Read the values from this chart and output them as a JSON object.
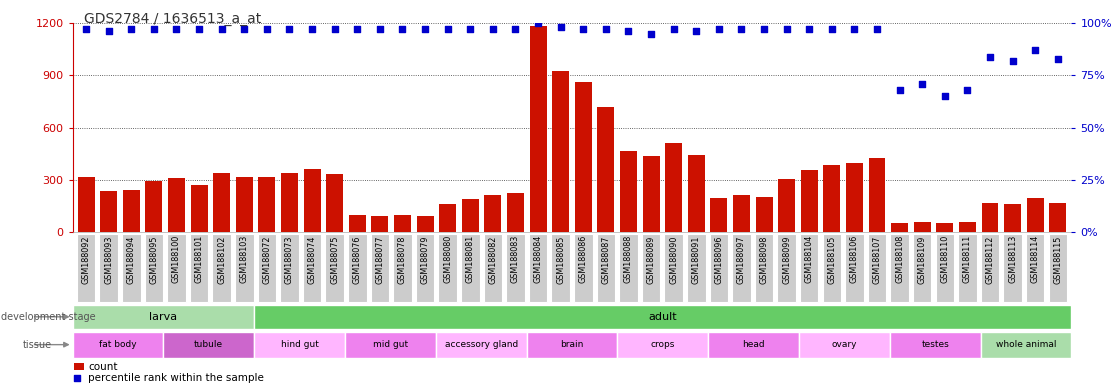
{
  "title": "GDS2784 / 1636513_a_at",
  "samples": [
    "GSM188092",
    "GSM188093",
    "GSM188094",
    "GSM188095",
    "GSM188100",
    "GSM188101",
    "GSM188102",
    "GSM188103",
    "GSM188072",
    "GSM188073",
    "GSM188074",
    "GSM188075",
    "GSM188076",
    "GSM188077",
    "GSM188078",
    "GSM188079",
    "GSM188080",
    "GSM188081",
    "GSM188082",
    "GSM188083",
    "GSM188084",
    "GSM188085",
    "GSM188086",
    "GSM188087",
    "GSM188088",
    "GSM188089",
    "GSM188090",
    "GSM188091",
    "GSM188096",
    "GSM188097",
    "GSM188098",
    "GSM188099",
    "GSM188104",
    "GSM188105",
    "GSM188106",
    "GSM188107",
    "GSM188108",
    "GSM188109",
    "GSM188110",
    "GSM188111",
    "GSM188112",
    "GSM188113",
    "GSM188114",
    "GSM188115"
  ],
  "counts": [
    320,
    235,
    240,
    295,
    310,
    270,
    340,
    315,
    315,
    340,
    365,
    335,
    100,
    95,
    98,
    95,
    165,
    190,
    215,
    225,
    1185,
    925,
    860,
    720,
    465,
    435,
    515,
    445,
    195,
    215,
    205,
    305,
    355,
    385,
    395,
    425,
    55,
    58,
    52,
    58,
    170,
    162,
    195,
    170
  ],
  "percentiles": [
    97,
    96,
    97,
    97,
    97,
    97,
    97,
    97,
    97,
    97,
    97,
    97,
    97,
    97,
    97,
    97,
    97,
    97,
    97,
    97,
    100,
    98,
    97,
    97,
    96,
    95,
    97,
    96,
    97,
    97,
    97,
    97,
    97,
    97,
    97,
    97,
    68,
    71,
    65,
    68,
    84,
    82,
    87,
    83
  ],
  "dev_stages": [
    {
      "label": "larva",
      "start": 0,
      "end": 8,
      "color": "#aaddaa"
    },
    {
      "label": "adult",
      "start": 8,
      "end": 44,
      "color": "#66cc66"
    }
  ],
  "tissues": [
    {
      "label": "fat body",
      "start": 0,
      "end": 4,
      "color": "#ee82ee"
    },
    {
      "label": "tubule",
      "start": 4,
      "end": 8,
      "color": "#cc66cc"
    },
    {
      "label": "hind gut",
      "start": 8,
      "end": 12,
      "color": "#ffb6ff"
    },
    {
      "label": "mid gut",
      "start": 12,
      "end": 16,
      "color": "#ee82ee"
    },
    {
      "label": "accessory gland",
      "start": 16,
      "end": 20,
      "color": "#ffb6ff"
    },
    {
      "label": "brain",
      "start": 20,
      "end": 24,
      "color": "#ee82ee"
    },
    {
      "label": "crops",
      "start": 24,
      "end": 28,
      "color": "#ffb6ff"
    },
    {
      "label": "head",
      "start": 28,
      "end": 32,
      "color": "#ee82ee"
    },
    {
      "label": "ovary",
      "start": 32,
      "end": 36,
      "color": "#ffb6ff"
    },
    {
      "label": "testes",
      "start": 36,
      "end": 40,
      "color": "#ee82ee"
    },
    {
      "label": "whole animal",
      "start": 40,
      "end": 44,
      "color": "#aaddaa"
    }
  ],
  "ylim_left": [
    0,
    1200
  ],
  "ylim_right": [
    0,
    100
  ],
  "yticks_left": [
    0,
    300,
    600,
    900,
    1200
  ],
  "yticks_right": [
    0,
    25,
    50,
    75,
    100
  ],
  "bar_color": "#cc1100",
  "dot_color": "#0000cc",
  "title_color": "#333333",
  "left_axis_color": "#cc0000",
  "right_axis_color": "#0000cc",
  "tick_bg_color": "#cccccc"
}
